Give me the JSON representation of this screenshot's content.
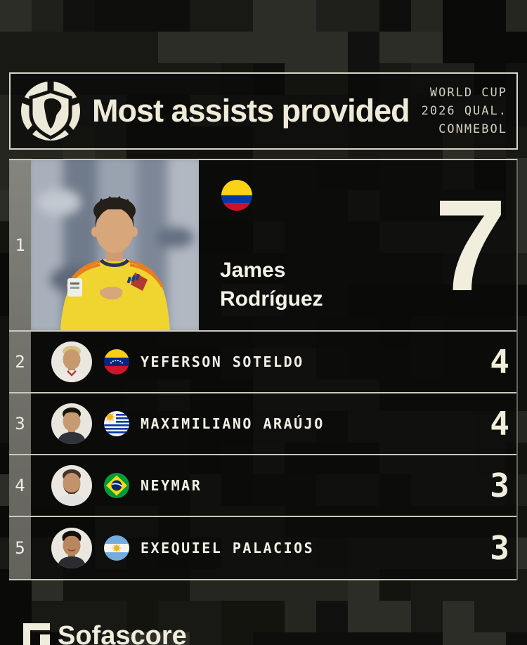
{
  "header": {
    "title": "Most assists provided",
    "competition_lines": [
      "WORLD CUP",
      "2026 QUAL.",
      "CONMEBOL"
    ],
    "logo_name": "CONMEBOL"
  },
  "leader": {
    "rank": "1",
    "first_name": "James",
    "last_name": "Rodríguez",
    "country": "Colombia",
    "assists": "7"
  },
  "rows": [
    {
      "rank": "2",
      "name": "YEFERSON SOTELDO",
      "country": "Venezuela",
      "assists": "4"
    },
    {
      "rank": "3",
      "name": "MAXIMILIANO ARAÚJO",
      "country": "Uruguay",
      "assists": "4"
    },
    {
      "rank": "4",
      "name": "NEYMAR",
      "country": "Brazil",
      "assists": "3"
    },
    {
      "rank": "5",
      "name": "EXEQUIEL PALACIOS",
      "country": "Argentina",
      "assists": "3"
    }
  ],
  "footer": {
    "brand": "Sofascore"
  },
  "colors": {
    "cream": "#efecdc",
    "background": "#0d0d0b",
    "separator": "#ccc9b9",
    "rank_strip": "#75756e"
  },
  "flags": {
    "colombia": {
      "yellow": "#fcd116",
      "blue": "#0038a8",
      "red": "#ce1126"
    },
    "venezuela": {
      "yellow": "#f7d014",
      "blue": "#00267f",
      "red": "#cf142b",
      "star": "#ffffff"
    },
    "uruguay": {
      "white": "#f4f3ee",
      "blue": "#0038a8",
      "sun": "#f6b40e"
    },
    "brazil": {
      "green": "#009b3a",
      "yellow": "#fcdd09",
      "blue": "#002776",
      "band": "#ffffff"
    },
    "argentina": {
      "lightblue": "#74acdf",
      "white": "#f5f5f2",
      "sun": "#f1b31c"
    }
  },
  "chart_data": {
    "type": "table",
    "title": "Most assists provided",
    "subtitle": "World Cup 2026 Qualification CONMEBOL",
    "columns": [
      "rank",
      "player",
      "country",
      "assists"
    ],
    "rows": [
      [
        1,
        "James Rodríguez",
        "Colombia",
        7
      ],
      [
        2,
        "Yeferson Soteldo",
        "Venezuela",
        4
      ],
      [
        3,
        "Maximiliano Araújo",
        "Uruguay",
        4
      ],
      [
        4,
        "Neymar",
        "Brazil",
        3
      ],
      [
        5,
        "Exequiel Palacios",
        "Argentina",
        3
      ]
    ]
  }
}
